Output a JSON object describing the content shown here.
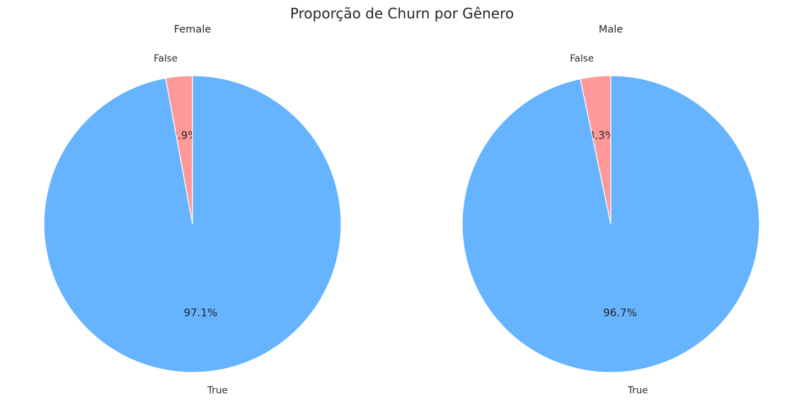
{
  "figure": {
    "title": "Proporção de Churn por Gênero"
  },
  "chart_data": [
    {
      "type": "pie",
      "title": "Female",
      "labels": [
        "False",
        "True"
      ],
      "values": [
        2.9,
        97.1
      ],
      "percent_labels": [
        "2.9%",
        "97.1%"
      ],
      "colors": [
        "#ff9999",
        "#66b3ff"
      ],
      "start_angle": 90,
      "direction": "counterclockwise",
      "slice_edge_color": "#ffffff"
    },
    {
      "type": "pie",
      "title": "Male",
      "labels": [
        "False",
        "True"
      ],
      "values": [
        3.3,
        96.7
      ],
      "percent_labels": [
        "3.3%",
        "96.7%"
      ],
      "colors": [
        "#ff9999",
        "#66b3ff"
      ],
      "start_angle": 90,
      "direction": "counterclockwise",
      "slice_edge_color": "#ffffff"
    }
  ]
}
